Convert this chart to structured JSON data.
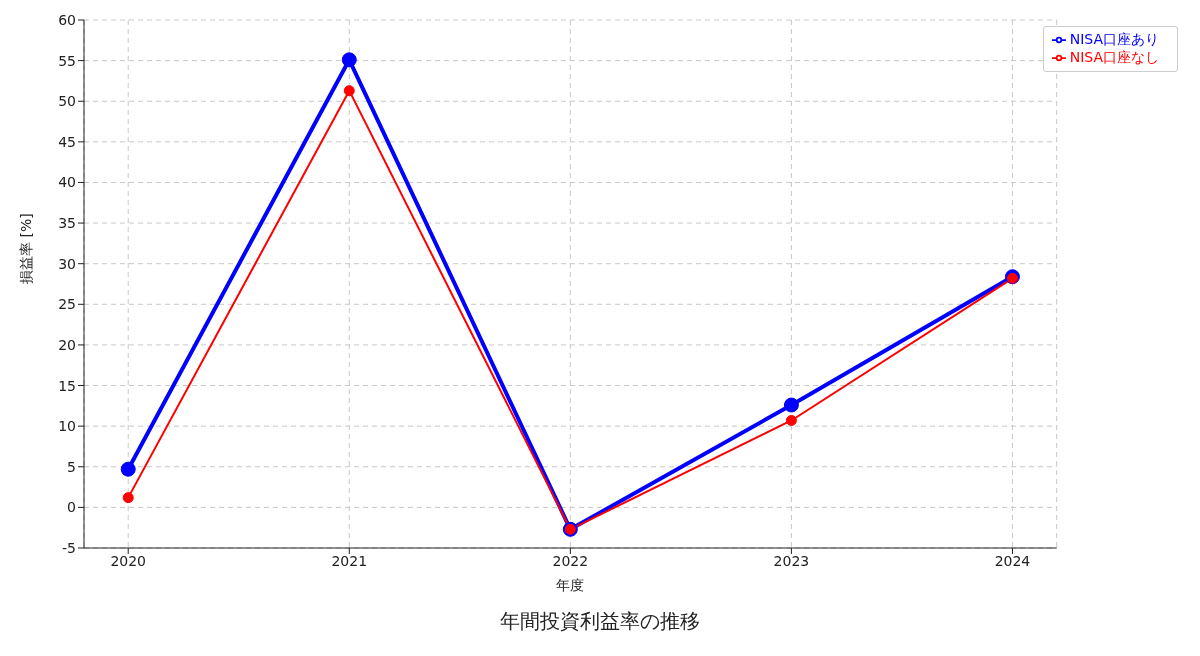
{
  "chart_data": {
    "type": "line",
    "title": "年間投資利益率の推移",
    "xlabel": "年度",
    "ylabel": "損益率 [%]",
    "x": [
      2020,
      2021,
      2022,
      2023,
      2024
    ],
    "series": [
      {
        "name": "NISA口座あり",
        "color": "#0000ff",
        "values": [
          4.7,
          55.1,
          -2.7,
          12.6,
          28.4
        ]
      },
      {
        "name": "NISA口座なし",
        "color": "#ff0000",
        "values": [
          1.2,
          51.3,
          -2.7,
          10.7,
          28.2
        ]
      }
    ],
    "xlim": [
      2019.8,
      2024.2
    ],
    "xticks": [
      2020,
      2021,
      2022,
      2023,
      2024
    ],
    "ylim": [
      -5,
      60
    ],
    "yticks": [
      -5,
      0,
      5,
      10,
      15,
      20,
      25,
      30,
      35,
      40,
      45,
      50,
      55,
      60
    ],
    "grid": true,
    "legend": "top right",
    "marker": "circle",
    "line_style": "solid"
  }
}
